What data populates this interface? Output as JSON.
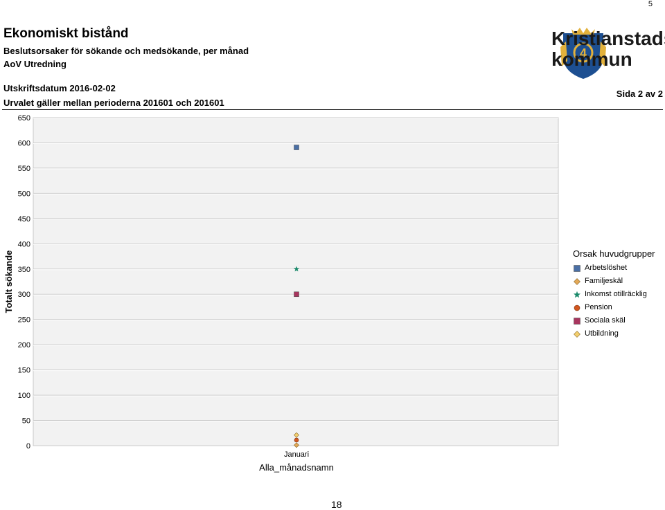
{
  "page_number": "5",
  "header": {
    "title": "Ekonomiskt bistånd",
    "subtitle": "Beslutsorsaker för sökande och medsökande, per månad",
    "department": "AoV Utredning",
    "print_date": "Utskriftsdatum 2016-02-02",
    "range": "Urvalet gäller mellan perioderna 201601 och 201601",
    "sheet": "Sida 2 av 2"
  },
  "logo": {
    "line1": "Kristianstads",
    "line2": "kommun",
    "shield_color": "#1d4f91",
    "gold_color": "#e2b13c"
  },
  "chart_data": {
    "type": "scatter",
    "categories": [
      "Januari"
    ],
    "xlabel": "Alla_månadsnamn",
    "ylabel": "Totalt sökande",
    "ylim": [
      0,
      650
    ],
    "yticks": [
      0,
      50,
      100,
      150,
      200,
      250,
      300,
      350,
      400,
      450,
      500,
      550,
      600,
      650
    ],
    "grid": true,
    "legend_title": "Orsak huvudgrupper",
    "legend_position": "right",
    "series": [
      {
        "name": "Arbetslöshet",
        "values": [
          591
        ],
        "marker": "square",
        "color": "#4a6fa5"
      },
      {
        "name": "Familjeskäl",
        "values": [
          1
        ],
        "marker": "diamond",
        "color": "#e3a857"
      },
      {
        "name": "Inkomst otillräcklig",
        "values": [
          350
        ],
        "marker": "star",
        "color": "#1b8a6b"
      },
      {
        "name": "Pension",
        "values": [
          11
        ],
        "marker": "circle",
        "color": "#d2571f"
      },
      {
        "name": "Sociala skäl",
        "values": [
          300
        ],
        "marker": "square",
        "color": "#a8355e"
      },
      {
        "name": "Utbildning",
        "values": [
          21
        ],
        "marker": "diamond",
        "color": "#f3cf6e"
      }
    ]
  },
  "footer": {
    "page": "18"
  }
}
